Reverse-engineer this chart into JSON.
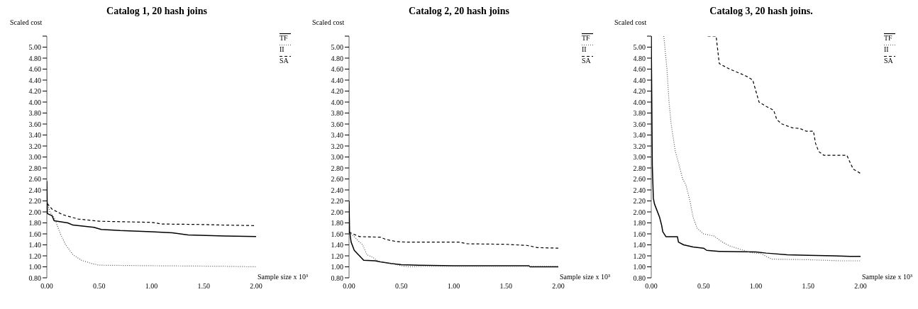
{
  "chart_data": [
    {
      "type": "line",
      "title": "Catalog 1, 20 hash joins",
      "xlabel": "Sample size x 10³",
      "ylabel": "Scaled cost",
      "xlim": [
        0,
        2
      ],
      "xticks": [
        {
          "value": 0,
          "label": "0.00"
        },
        {
          "value": 0.5,
          "label": "0.50"
        },
        {
          "value": 1,
          "label": "1.00"
        },
        {
          "value": 1.5,
          "label": "1.50"
        },
        {
          "value": 2,
          "label": "2.00"
        }
      ],
      "ylim": [
        0.8,
        5.2
      ],
      "yticks": [
        {
          "value": 0.8,
          "label": "0.80"
        },
        {
          "value": 1,
          "label": "1.00"
        },
        {
          "value": 1.2,
          "label": "1.20"
        },
        {
          "value": 1.4,
          "label": "1.40"
        },
        {
          "value": 1.6,
          "label": "1.60"
        },
        {
          "value": 1.8,
          "label": "1.80"
        },
        {
          "value": 2,
          "label": "2.00"
        },
        {
          "value": 2.2,
          "label": "2.20"
        },
        {
          "value": 2.4,
          "label": "2.40"
        },
        {
          "value": 2.6,
          "label": "2.60"
        },
        {
          "value": 2.8,
          "label": "2.80"
        },
        {
          "value": 3,
          "label": "3.00"
        },
        {
          "value": 3.2,
          "label": "3.20"
        },
        {
          "value": 3.4,
          "label": "3.40"
        },
        {
          "value": 3.6,
          "label": "3.60"
        },
        {
          "value": 3.8,
          "label": "3.80"
        },
        {
          "value": 4,
          "label": "4.00"
        },
        {
          "value": 4.2,
          "label": "4.20"
        },
        {
          "value": 4.4,
          "label": "4.40"
        },
        {
          "value": 4.6,
          "label": "4.60"
        },
        {
          "value": 4.8,
          "label": "4.80"
        },
        {
          "value": 5,
          "label": "5.00"
        },
        {
          "value": 5.2,
          "label": null
        }
      ],
      "legend": "top right",
      "marker": "none",
      "series": [
        {
          "name": "TF",
          "color": "#000000",
          "line_style": "solid",
          "x": [
            0,
            0.005,
            0.05,
            0.07,
            0.2,
            0.25,
            0.45,
            0.52,
            0.7,
            1.0,
            1.2,
            1.35,
            1.7,
            2.0
          ],
          "values": [
            2.56,
            1.97,
            1.93,
            1.84,
            1.8,
            1.76,
            1.72,
            1.68,
            1.66,
            1.64,
            1.62,
            1.58,
            1.56,
            1.55
          ]
        },
        {
          "name": "II",
          "color": "#555555",
          "line_style": "dotted",
          "x": [
            0,
            0.03,
            0.07,
            0.13,
            0.18,
            0.25,
            0.33,
            0.43,
            0.5,
            1.0,
            1.7,
            2.0
          ],
          "values": [
            2.2,
            2.0,
            1.9,
            1.6,
            1.4,
            1.22,
            1.12,
            1.06,
            1.03,
            1.02,
            1.01,
            1.0
          ]
        },
        {
          "name": "SA",
          "color": "#000000",
          "line_style": "dashed",
          "x": [
            0.005,
            0.05,
            0.15,
            0.3,
            0.5,
            1.0,
            1.1,
            1.5,
            1.7,
            2.0
          ],
          "values": [
            2.15,
            2.05,
            1.95,
            1.87,
            1.83,
            1.81,
            1.78,
            1.77,
            1.76,
            1.75
          ]
        }
      ]
    },
    {
      "type": "line",
      "title": "Catalog 2, 20 hash joins",
      "xlabel": "Sample size x 10³",
      "ylabel": "Scaled cost",
      "xlim": [
        0,
        2
      ],
      "xticks": [
        {
          "value": 0,
          "label": "0.00"
        },
        {
          "value": 0.5,
          "label": "0.50"
        },
        {
          "value": 1,
          "label": "1.00"
        },
        {
          "value": 1.5,
          "label": "1.50"
        },
        {
          "value": 2,
          "label": "2.00"
        }
      ],
      "ylim": [
        0.8,
        5.2
      ],
      "yticks": [
        {
          "value": 0.8,
          "label": "0.80"
        },
        {
          "value": 1,
          "label": "1.00"
        },
        {
          "value": 1.2,
          "label": "1.20"
        },
        {
          "value": 1.4,
          "label": "1.40"
        },
        {
          "value": 1.6,
          "label": "1.60"
        },
        {
          "value": 1.8,
          "label": "1.80"
        },
        {
          "value": 2,
          "label": "2.00"
        },
        {
          "value": 2.2,
          "label": "2.20"
        },
        {
          "value": 2.4,
          "label": "2.40"
        },
        {
          "value": 2.6,
          "label": "2.60"
        },
        {
          "value": 2.8,
          "label": "2.80"
        },
        {
          "value": 3,
          "label": "3.00"
        },
        {
          "value": 3.2,
          "label": "3.20"
        },
        {
          "value": 3.4,
          "label": "3.40"
        },
        {
          "value": 3.6,
          "label": "3.60"
        },
        {
          "value": 3.8,
          "label": "3.80"
        },
        {
          "value": 4,
          "label": "4.00"
        },
        {
          "value": 4.2,
          "label": "4.20"
        },
        {
          "value": 4.4,
          "label": "4.40"
        },
        {
          "value": 4.6,
          "label": "4.60"
        },
        {
          "value": 4.8,
          "label": "4.80"
        },
        {
          "value": 5,
          "label": "5.00"
        },
        {
          "value": 5.2,
          "label": null
        }
      ],
      "legend": "top right",
      "marker": "none",
      "series": [
        {
          "name": "TF",
          "color": "#000000",
          "line_style": "solid",
          "x": [
            0,
            0.005,
            0.02,
            0.05,
            0.1,
            0.14,
            0.25,
            0.3,
            0.4,
            0.5,
            0.67,
            1.0,
            1.72,
            1.73,
            2.0
          ],
          "values": [
            2.2,
            1.65,
            1.45,
            1.3,
            1.2,
            1.12,
            1.11,
            1.09,
            1.06,
            1.04,
            1.03,
            1.02,
            1.02,
            1.0,
            1.0
          ]
        },
        {
          "name": "II",
          "color": "#555555",
          "line_style": "dotted",
          "x": [
            0,
            0.05,
            0.1,
            0.13,
            0.17,
            0.22,
            0.28,
            0.4,
            0.5,
            0.57,
            0.7,
            2.0
          ],
          "values": [
            1.62,
            1.55,
            1.45,
            1.4,
            1.22,
            1.18,
            1.1,
            1.06,
            1.02,
            1.0,
            1.01,
            1.01
          ]
        },
        {
          "name": "SA",
          "color": "#000000",
          "line_style": "dashed",
          "x": [
            0,
            0.1,
            0.3,
            0.35,
            0.45,
            0.55,
            1.05,
            1.13,
            1.5,
            1.7,
            1.8,
            2.0
          ],
          "values": [
            1.63,
            1.55,
            1.54,
            1.5,
            1.46,
            1.45,
            1.45,
            1.42,
            1.41,
            1.39,
            1.35,
            1.34
          ]
        }
      ]
    },
    {
      "type": "line",
      "title": "Catalog 3, 20 hash joins.",
      "xlabel": "Sample size x 10³",
      "ylabel": "Scaled cost",
      "xlim": [
        0,
        2
      ],
      "xticks": [
        {
          "value": 0,
          "label": "0.00"
        },
        {
          "value": 0.5,
          "label": "0.50"
        },
        {
          "value": 1,
          "label": "1.00"
        },
        {
          "value": 1.5,
          "label": "1.50"
        },
        {
          "value": 2,
          "label": "2.00"
        }
      ],
      "ylim": [
        0.8,
        5.2
      ],
      "yticks": [
        {
          "value": 0.8,
          "label": "0.80"
        },
        {
          "value": 1,
          "label": "1.00"
        },
        {
          "value": 1.2,
          "label": "1.20"
        },
        {
          "value": 1.4,
          "label": "1.40"
        },
        {
          "value": 1.6,
          "label": "1.60"
        },
        {
          "value": 1.8,
          "label": "1.80"
        },
        {
          "value": 2,
          "label": "2.00"
        },
        {
          "value": 2.2,
          "label": "2.20"
        },
        {
          "value": 2.4,
          "label": "2.40"
        },
        {
          "value": 2.6,
          "label": "2.60"
        },
        {
          "value": 2.8,
          "label": "2.80"
        },
        {
          "value": 3,
          "label": "3.00"
        },
        {
          "value": 3.2,
          "label": "3.20"
        },
        {
          "value": 3.4,
          "label": "3.40"
        },
        {
          "value": 3.6,
          "label": "3.60"
        },
        {
          "value": 3.8,
          "label": "3.80"
        },
        {
          "value": 4,
          "label": "4.00"
        },
        {
          "value": 4.2,
          "label": "4.20"
        },
        {
          "value": 4.4,
          "label": "4.40"
        },
        {
          "value": 4.6,
          "label": "4.60"
        },
        {
          "value": 4.8,
          "label": "4.80"
        },
        {
          "value": 5,
          "label": "5.00"
        },
        {
          "value": 5.2,
          "label": null
        }
      ],
      "legend": "top right",
      "marker": "none",
      "series": [
        {
          "name": "TF",
          "color": "#000000",
          "line_style": "solid",
          "x": [
            0,
            0.01,
            0.02,
            0.03,
            0.05,
            0.08,
            0.1,
            0.11,
            0.14,
            0.25,
            0.26,
            0.31,
            0.4,
            0.5,
            0.53,
            0.65,
            1.0,
            1.1,
            1.3,
            1.5,
            1.75,
            1.9,
            2.0
          ],
          "values": [
            5.2,
            2.85,
            2.25,
            2.15,
            2.05,
            1.9,
            1.75,
            1.64,
            1.55,
            1.55,
            1.45,
            1.4,
            1.36,
            1.34,
            1.3,
            1.28,
            1.27,
            1.25,
            1.22,
            1.21,
            1.2,
            1.19,
            1.19
          ]
        },
        {
          "name": "II",
          "color": "#555555",
          "line_style": "dotted",
          "x": [
            0.12,
            0.15,
            0.17,
            0.19,
            0.23,
            0.26,
            0.3,
            0.33,
            0.37,
            0.4,
            0.44,
            0.5,
            0.6,
            0.68,
            0.75,
            0.85,
            0.95,
            1.05,
            1.15,
            1.5,
            1.8,
            2.0
          ],
          "values": [
            5.2,
            4.6,
            4.0,
            3.6,
            3.1,
            2.9,
            2.6,
            2.5,
            2.2,
            1.9,
            1.7,
            1.6,
            1.56,
            1.45,
            1.38,
            1.32,
            1.26,
            1.24,
            1.14,
            1.13,
            1.11,
            1.11
          ]
        },
        {
          "name": "SA",
          "color": "#000000",
          "line_style": "dashed",
          "x": [
            0.54,
            0.62,
            0.65,
            0.7,
            0.75,
            0.85,
            0.92,
            0.97,
            1.0,
            1.03,
            1.1,
            1.17,
            1.2,
            1.25,
            1.35,
            1.42,
            1.48,
            1.55,
            1.57,
            1.6,
            1.65,
            1.87,
            1.9,
            1.93,
            2.0
          ],
          "values": [
            5.2,
            5.2,
            4.7,
            4.65,
            4.6,
            4.52,
            4.46,
            4.4,
            4.2,
            4.0,
            3.92,
            3.85,
            3.68,
            3.6,
            3.53,
            3.52,
            3.47,
            3.47,
            3.25,
            3.1,
            3.03,
            3.03,
            2.9,
            2.78,
            2.7
          ]
        }
      ]
    }
  ]
}
